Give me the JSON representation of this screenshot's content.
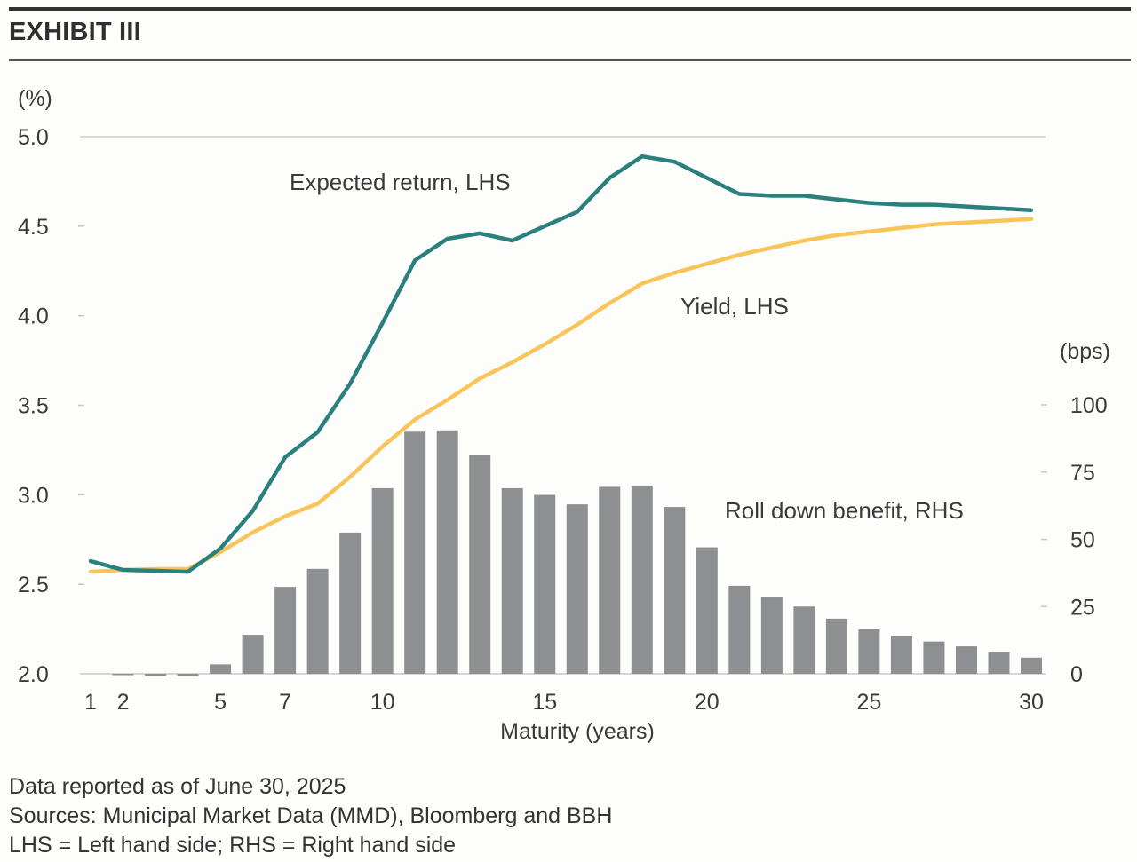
{
  "header": {
    "title": "EXHIBIT III"
  },
  "chart_data": {
    "type": "bar+line",
    "title": "EXHIBIT III",
    "xlabel": "Maturity (years)",
    "ylabel_left": "(%)",
    "ylabel_right": "(bps)",
    "x": [
      1,
      2,
      3,
      4,
      5,
      6,
      7,
      8,
      9,
      10,
      11,
      12,
      13,
      14,
      15,
      16,
      17,
      18,
      19,
      20,
      21,
      22,
      23,
      24,
      25,
      26,
      27,
      28,
      29,
      30
    ],
    "x_ticks": [
      1,
      2,
      5,
      7,
      10,
      15,
      20,
      25,
      30
    ],
    "x_tick_labels": [
      "1",
      "2",
      "5",
      "7",
      "10",
      "15",
      "20",
      "25",
      "30"
    ],
    "xlim": [
      1,
      30
    ],
    "ylim_left": [
      2.0,
      5.0
    ],
    "y_ticks_left": [
      2.0,
      2.5,
      3.0,
      3.5,
      4.0,
      4.5,
      5.0
    ],
    "y_tick_labels_left": [
      "2.0",
      "2.5",
      "3.0",
      "3.5",
      "4.0",
      "4.5",
      "5.0"
    ],
    "ylim_right": [
      0,
      100
    ],
    "y_ticks_right": [
      0,
      25,
      50,
      75,
      100
    ],
    "y_tick_labels_right": [
      "0",
      "25",
      "50",
      "75",
      "100"
    ],
    "grid": "top-line-only",
    "series": [
      {
        "name": "Expected return, LHS",
        "type": "line",
        "axis": "left",
        "color": "#2a807c",
        "label_text": "Expected return, LHS",
        "values": [
          2.63,
          2.58,
          2.575,
          2.57,
          2.7,
          2.91,
          3.21,
          3.35,
          3.62,
          3.96,
          4.31,
          4.43,
          4.46,
          4.42,
          4.5,
          4.58,
          4.77,
          4.89,
          4.86,
          4.77,
          4.68,
          4.67,
          4.67,
          4.65,
          4.63,
          4.62,
          4.62,
          4.61,
          4.6,
          4.59
        ]
      },
      {
        "name": "Yield, LHS",
        "type": "line",
        "axis": "left",
        "color": "#f9c55a",
        "label_text": "Yield, LHS",
        "values": [
          2.57,
          2.58,
          2.585,
          2.585,
          2.68,
          2.79,
          2.88,
          2.95,
          3.1,
          3.27,
          3.42,
          3.53,
          3.65,
          3.74,
          3.84,
          3.95,
          4.07,
          4.18,
          4.24,
          4.29,
          4.34,
          4.38,
          4.42,
          4.45,
          4.47,
          4.49,
          4.51,
          4.52,
          4.53,
          4.54
        ]
      },
      {
        "name": "Roll down benefit, RHS",
        "type": "bar",
        "axis": "right",
        "color": "#8e8f90",
        "label_text": "Roll down benefit, RHS",
        "values": [
          0,
          -0.3,
          -0.7,
          -0.7,
          3.5,
          14.5,
          32.3,
          39,
          52.5,
          69,
          90,
          90.5,
          81.5,
          69,
          66.5,
          63,
          69.5,
          70,
          62,
          47,
          32.7,
          28.7,
          25,
          20.5,
          16.5,
          14.2,
          12,
          10.2,
          8.2,
          6
        ]
      }
    ]
  },
  "footer": {
    "lines": [
      "Data reported as of June 30, 2025",
      "Sources: Municipal Market Data (MMD), Bloomberg and BBH",
      "LHS = Left hand side; RHS = Right hand side"
    ]
  }
}
